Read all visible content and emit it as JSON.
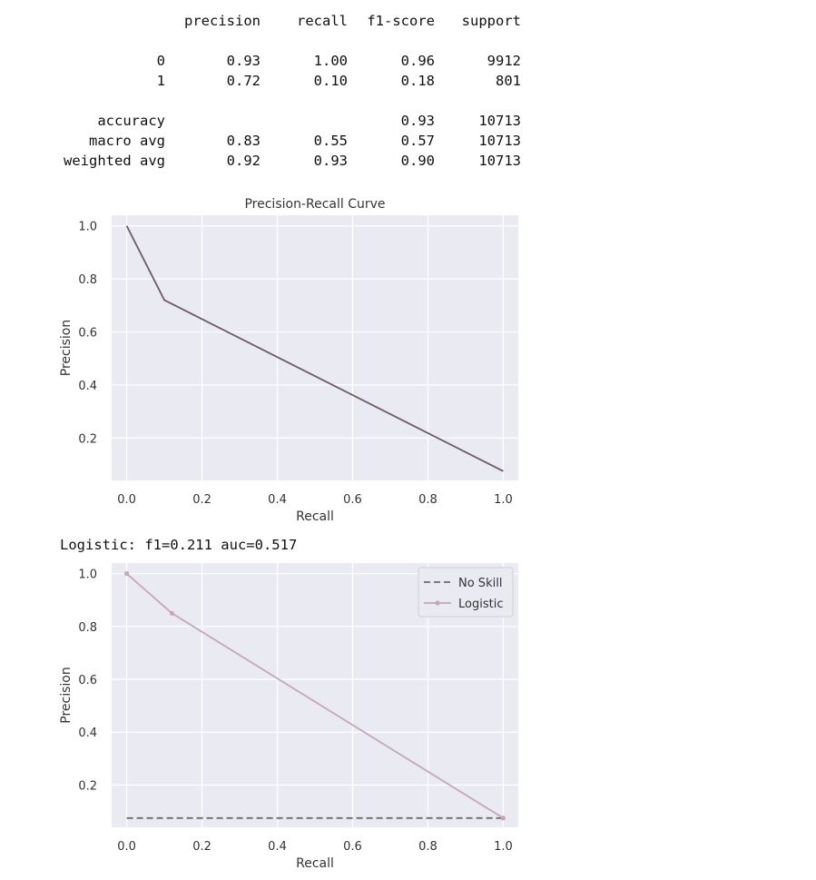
{
  "report": {
    "headers": [
      "precision",
      "recall",
      "f1-score",
      "support"
    ],
    "rows": [
      {
        "label": "0",
        "precision": "0.93",
        "recall": "1.00",
        "f1": "0.96",
        "support": "9912"
      },
      {
        "label": "1",
        "precision": "0.72",
        "recall": "0.10",
        "f1": "0.18",
        "support": "801"
      },
      {
        "label": "accuracy",
        "precision": "",
        "recall": "",
        "f1": "0.93",
        "support": "10713"
      },
      {
        "label": "macro avg",
        "precision": "0.83",
        "recall": "0.55",
        "f1": "0.57",
        "support": "10713"
      },
      {
        "label": "weighted avg",
        "precision": "0.92",
        "recall": "0.93",
        "f1": "0.90",
        "support": "10713"
      }
    ]
  },
  "logistic_text": "Logistic: f1=0.211 auc=0.517",
  "chart_data": [
    {
      "type": "line",
      "title": "Precision-Recall Curve",
      "xlabel": "Recall",
      "ylabel": "Precision",
      "xlim": [
        -0.04,
        1.04
      ],
      "ylim": [
        0.04,
        1.04
      ],
      "xticks": [
        "0.0",
        "0.2",
        "0.4",
        "0.6",
        "0.8",
        "1.0"
      ],
      "yticks": [
        "0.2",
        "0.4",
        "0.6",
        "0.8",
        "1.0"
      ],
      "grid": true,
      "series": [
        {
          "x": [
            0.0,
            0.1,
            1.0
          ],
          "y": [
            1.0,
            0.72,
            0.075
          ],
          "color": "#6e5a6a",
          "dash": false,
          "marker": false
        }
      ]
    },
    {
      "type": "line",
      "title": "",
      "xlabel": "Recall",
      "ylabel": "Precision",
      "xlim": [
        -0.04,
        1.04
      ],
      "ylim": [
        0.04,
        1.04
      ],
      "xticks": [
        "0.0",
        "0.2",
        "0.4",
        "0.6",
        "0.8",
        "1.0"
      ],
      "yticks": [
        "0.2",
        "0.4",
        "0.6",
        "0.8",
        "1.0"
      ],
      "grid": true,
      "legend_position": "top-right",
      "series": [
        {
          "name": "No Skill",
          "x": [
            0.0,
            1.0
          ],
          "y": [
            0.075,
            0.075
          ],
          "color": "#6b6b73",
          "dash": true,
          "marker": false
        },
        {
          "name": "Logistic",
          "x": [
            0.0,
            0.12,
            1.0
          ],
          "y": [
            1.0,
            0.85,
            0.075
          ],
          "color": "#c4a7b8",
          "dash": false,
          "marker": true
        }
      ]
    }
  ]
}
